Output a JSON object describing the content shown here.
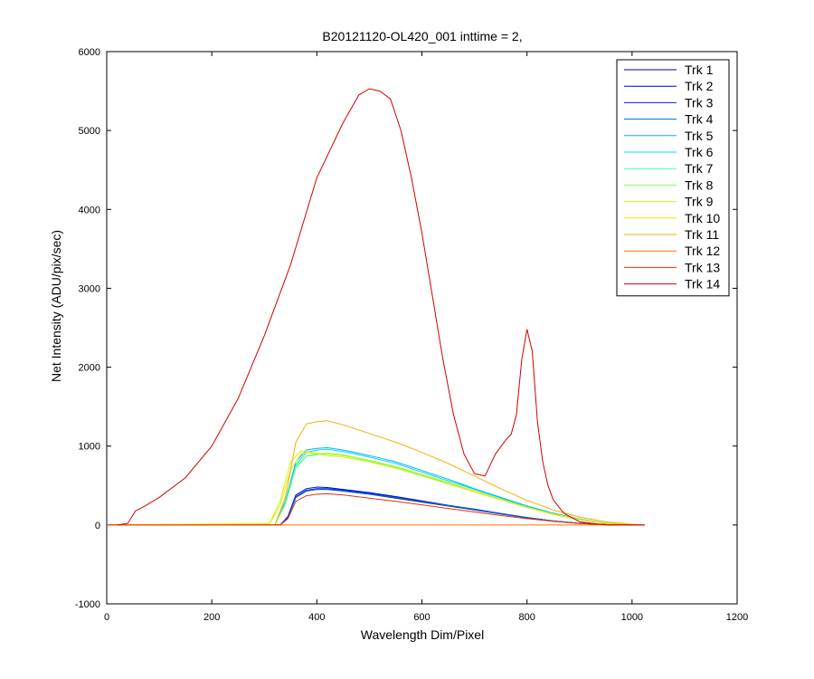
{
  "chart_data": {
    "type": "line",
    "title": "B20121120-OL420_001 inttime = 2,",
    "xlabel": "Wavelength Dim/Pixel",
    "ylabel": "Net Intensity (ADU/pix/sec)",
    "xlim": [
      0,
      1200
    ],
    "ylim": [
      -1000,
      6000
    ],
    "xticks": [
      0,
      200,
      400,
      600,
      800,
      1000,
      1200
    ],
    "yticks": [
      -1000,
      0,
      1000,
      2000,
      3000,
      4000,
      5000,
      6000
    ],
    "xtick_labels": [
      "0",
      "200",
      "400",
      "600",
      "800",
      "1000",
      "1200"
    ],
    "ytick_labels": [
      "-1000",
      "0",
      "1000",
      "2000",
      "3000",
      "4000",
      "5000",
      "6000"
    ],
    "grid": false,
    "legend_position": "top-right",
    "series": [
      {
        "name": "Trk 1",
        "color": "#00008f",
        "x": [
          0,
          330,
          345,
          360,
          380,
          400,
          420,
          450,
          500,
          550,
          600,
          650,
          700,
          750,
          800,
          850,
          900,
          950,
          1000,
          1024
        ],
        "y": [
          0,
          0,
          100,
          350,
          430,
          450,
          450,
          430,
          390,
          340,
          290,
          240,
          190,
          140,
          90,
          50,
          20,
          5,
          0,
          0
        ]
      },
      {
        "name": "Trk 2",
        "color": "#0000d0",
        "x": [
          0,
          330,
          345,
          360,
          380,
          400,
          420,
          450,
          500,
          550,
          600,
          650,
          700,
          750,
          800,
          850,
          900,
          950,
          1000,
          1024
        ],
        "y": [
          0,
          0,
          110,
          380,
          460,
          480,
          475,
          450,
          410,
          360,
          305,
          250,
          200,
          145,
          95,
          50,
          20,
          5,
          0,
          0
        ]
      },
      {
        "name": "Trk 3",
        "color": "#0020ff",
        "x": [
          0,
          330,
          345,
          360,
          380,
          400,
          420,
          450,
          500,
          550,
          600,
          650,
          700,
          750,
          800,
          850,
          900,
          950,
          1000,
          1024
        ],
        "y": [
          0,
          0,
          100,
          360,
          440,
          460,
          460,
          440,
          400,
          350,
          300,
          245,
          195,
          145,
          95,
          50,
          20,
          5,
          0,
          0
        ]
      },
      {
        "name": "Trk 4",
        "color": "#0070c0",
        "x": [
          0,
          330,
          345,
          360,
          380,
          400,
          420,
          450,
          500,
          550,
          600,
          650,
          700,
          750,
          800,
          850,
          900,
          950,
          1000,
          1024
        ],
        "y": [
          0,
          0,
          90,
          350,
          430,
          450,
          450,
          430,
          390,
          345,
          295,
          245,
          195,
          140,
          95,
          50,
          20,
          5,
          0,
          0
        ]
      },
      {
        "name": "Trk 5",
        "color": "#00b0ff",
        "x": [
          0,
          320,
          340,
          360,
          380,
          400,
          420,
          450,
          500,
          550,
          600,
          650,
          700,
          750,
          800,
          850,
          900,
          950,
          1000,
          1024
        ],
        "y": [
          0,
          0,
          300,
          800,
          950,
          970,
          980,
          950,
          880,
          800,
          690,
          580,
          460,
          350,
          240,
          150,
          75,
          25,
          5,
          0
        ]
      },
      {
        "name": "Trk 6",
        "color": "#00d8ff",
        "x": [
          0,
          320,
          340,
          360,
          380,
          400,
          420,
          450,
          500,
          550,
          600,
          650,
          700,
          750,
          800,
          850,
          900,
          950,
          1000,
          1024
        ],
        "y": [
          0,
          0,
          280,
          760,
          920,
          950,
          960,
          930,
          860,
          780,
          670,
          560,
          450,
          340,
          235,
          145,
          70,
          25,
          5,
          0
        ]
      },
      {
        "name": "Trk 7",
        "color": "#40ffd0",
        "x": [
          0,
          320,
          340,
          360,
          380,
          400,
          420,
          450,
          500,
          550,
          600,
          650,
          700,
          750,
          800,
          850,
          900,
          950,
          1000,
          1024
        ],
        "y": [
          0,
          0,
          260,
          720,
          870,
          890,
          900,
          880,
          810,
          730,
          630,
          530,
          420,
          320,
          220,
          135,
          65,
          20,
          5,
          0
        ]
      },
      {
        "name": "Trk 8",
        "color": "#80ff60",
        "x": [
          0,
          320,
          340,
          360,
          380,
          400,
          420,
          450,
          500,
          550,
          600,
          650,
          700,
          750,
          800,
          850,
          900,
          950,
          1000,
          1024
        ],
        "y": [
          0,
          0,
          270,
          740,
          880,
          900,
          910,
          890,
          820,
          740,
          640,
          540,
          430,
          325,
          225,
          140,
          70,
          25,
          5,
          0
        ]
      },
      {
        "name": "Trk 9",
        "color": "#c0ff00",
        "x": [
          0,
          310,
          330,
          350,
          370,
          380,
          400,
          420,
          450,
          500,
          550,
          600,
          650,
          700,
          750,
          800,
          850,
          900,
          950,
          1000,
          1024
        ],
        "y": [
          0,
          20,
          300,
          800,
          940,
          930,
          910,
          900,
          880,
          820,
          740,
          640,
          540,
          430,
          325,
          225,
          140,
          70,
          25,
          5,
          0
        ]
      },
      {
        "name": "Trk 10",
        "color": "#e8e800",
        "x": [
          0,
          310,
          330,
          350,
          370,
          380,
          400,
          420,
          450,
          500,
          550,
          600,
          650,
          700,
          750,
          800,
          850,
          900,
          950,
          1000,
          1024
        ],
        "y": [
          0,
          15,
          250,
          700,
          900,
          920,
          900,
          880,
          860,
          800,
          720,
          620,
          520,
          420,
          320,
          220,
          135,
          65,
          20,
          5,
          0
        ]
      },
      {
        "name": "Trk 11",
        "color": "#f0b000",
        "x": [
          0,
          320,
          340,
          360,
          380,
          400,
          420,
          450,
          500,
          550,
          600,
          650,
          700,
          750,
          800,
          850,
          900,
          950,
          1000,
          1024
        ],
        "y": [
          0,
          0,
          350,
          1050,
          1280,
          1310,
          1320,
          1270,
          1160,
          1050,
          920,
          780,
          620,
          460,
          310,
          190,
          100,
          40,
          10,
          0
        ]
      },
      {
        "name": "Trk 12",
        "color": "#ff7000",
        "x": [
          0,
          1024
        ],
        "y": [
          0,
          0
        ]
      },
      {
        "name": "Trk 13",
        "color": "#e83000",
        "x": [
          0,
          330,
          345,
          360,
          380,
          400,
          420,
          450,
          500,
          550,
          600,
          650,
          700,
          750,
          800,
          850,
          900,
          950,
          1000,
          1024
        ],
        "y": [
          0,
          0,
          80,
          300,
          370,
          390,
          395,
          380,
          340,
          300,
          255,
          210,
          165,
          120,
          80,
          45,
          18,
          5,
          0,
          0
        ]
      },
      {
        "name": "Trk 14",
        "color": "#d00000",
        "x": [
          20,
          40,
          55,
          70,
          100,
          150,
          200,
          250,
          300,
          350,
          400,
          450,
          480,
          500,
          520,
          540,
          560,
          580,
          600,
          620,
          640,
          660,
          680,
          700,
          720,
          740,
          760,
          770,
          780,
          790,
          800,
          810,
          820,
          830,
          840,
          850,
          870,
          900,
          950,
          1000,
          1024
        ],
        "y": [
          0,
          20,
          180,
          230,
          350,
          600,
          1000,
          1600,
          2400,
          3300,
          4400,
          5100,
          5450,
          5530,
          5500,
          5400,
          5000,
          4400,
          3700,
          2900,
          2100,
          1400,
          900,
          650,
          620,
          900,
          1080,
          1150,
          1400,
          2100,
          2480,
          2200,
          1300,
          800,
          500,
          320,
          150,
          40,
          0,
          0,
          0
        ]
      }
    ]
  }
}
